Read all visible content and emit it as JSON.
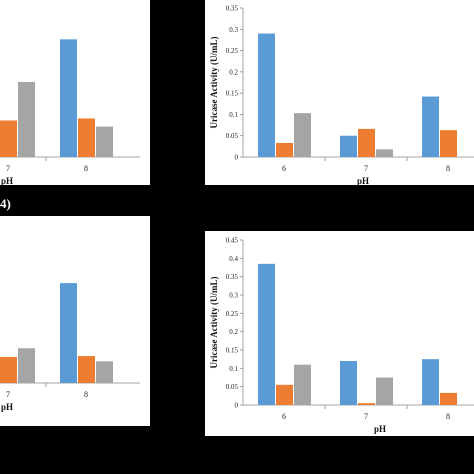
{
  "colors": {
    "series1": "#5b9bd5",
    "series2": "#ed7d31",
    "series3": "#a5a5a5"
  },
  "panel_labels": {
    "bottom_left": "4)"
  },
  "chart_data": [
    {
      "type": "bar",
      "panel": "top-left",
      "categories": [
        "7",
        "8"
      ],
      "xlabel": "pH",
      "ylabel": "",
      "series": [
        {
          "values": [
            null,
            0.29
          ]
        },
        {
          "values": [
            0.09,
            0.095
          ]
        },
        {
          "values": [
            0.185,
            0.075
          ]
        }
      ]
    },
    {
      "type": "bar",
      "panel": "top-right",
      "categories": [
        "6",
        "7",
        "8"
      ],
      "xlabel": "pH",
      "ylabel": "Uricase Activity (U/mL)",
      "ylim": [
        0,
        0.35
      ],
      "yticks": [
        "0",
        "0.05",
        "0.1",
        "0.15",
        "0.2",
        "0.25",
        "0.3",
        "0.35"
      ],
      "series": [
        {
          "values": [
            0.29,
            0.05,
            0.142
          ]
        },
        {
          "values": [
            0.033,
            0.066,
            0.063
          ]
        },
        {
          "values": [
            0.103,
            0.018,
            null
          ]
        }
      ]
    },
    {
      "type": "bar",
      "panel": "bottom-left",
      "categories": [
        "7",
        "8"
      ],
      "xlabel": "pH",
      "ylabel": "",
      "series": [
        {
          "values": [
            null,
            0.23
          ]
        },
        {
          "values": [
            0.06,
            0.062
          ]
        },
        {
          "values": [
            0.08,
            0.05
          ]
        }
      ]
    },
    {
      "type": "bar",
      "panel": "bottom-right",
      "categories": [
        "6",
        "7",
        "8"
      ],
      "xlabel": "pH",
      "ylabel": "Uricase Activity (U/mL)",
      "ylim": [
        0,
        0.45
      ],
      "yticks": [
        "0",
        "0.05",
        "0.1",
        "0.15",
        "0.2",
        "0.25",
        "0.3",
        "0.35",
        "0.4",
        "0.45"
      ],
      "series": [
        {
          "values": [
            0.385,
            0.12,
            0.125
          ]
        },
        {
          "values": [
            0.055,
            0.005,
            0.033
          ]
        },
        {
          "values": [
            0.11,
            0.075,
            null
          ]
        }
      ]
    }
  ]
}
